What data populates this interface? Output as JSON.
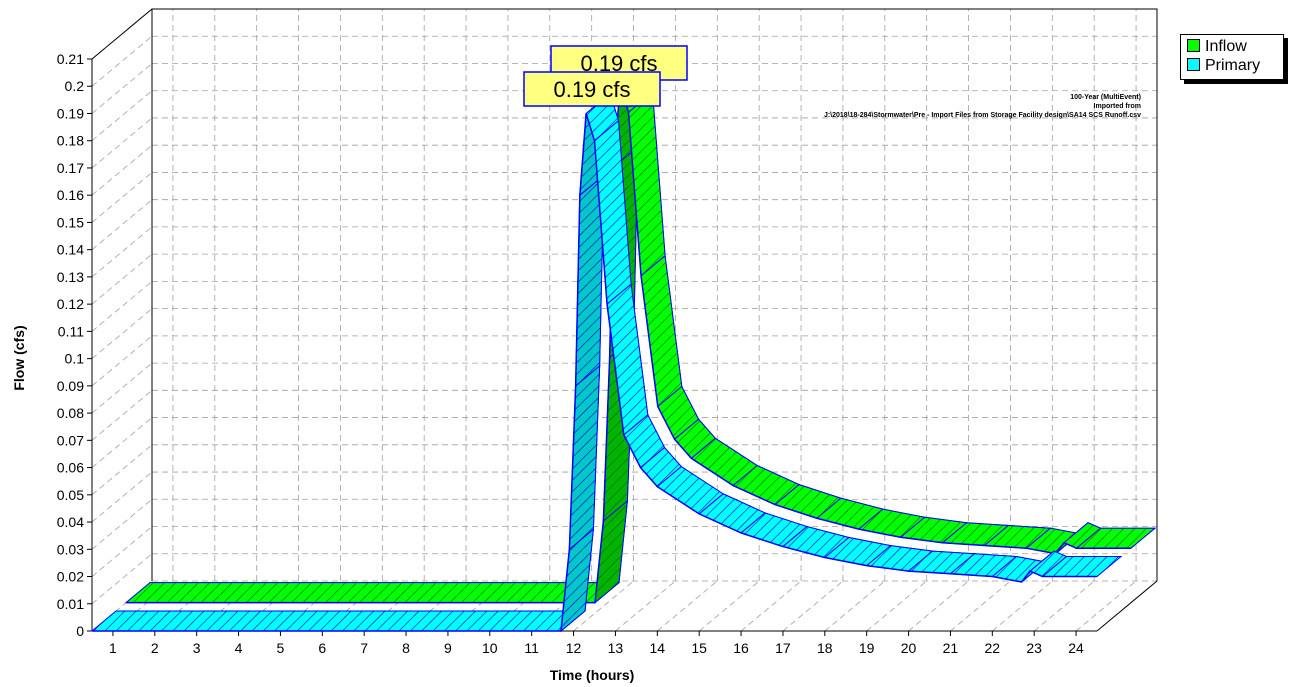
{
  "chart_data": {
    "type": "area",
    "title": "",
    "xlabel": "Time  (hours)",
    "ylabel": "Flow  (cfs)",
    "xlim": [
      0.5,
      24.5
    ],
    "ylim": [
      0,
      0.21
    ],
    "x_ticks": [
      "1",
      "2",
      "3",
      "4",
      "5",
      "6",
      "7",
      "8",
      "9",
      "10",
      "11",
      "12",
      "13",
      "14",
      "15",
      "16",
      "17",
      "18",
      "19",
      "20",
      "21",
      "22",
      "23",
      "24"
    ],
    "y_ticks": [
      "0",
      "0.01",
      "0.02",
      "0.03",
      "0.04",
      "0.05",
      "0.06",
      "0.07",
      "0.08",
      "0.09",
      "0.1",
      "0.11",
      "0.12",
      "0.13",
      "0.14",
      "0.15",
      "0.16",
      "0.17",
      "0.18",
      "0.19",
      "0.2",
      "0.21"
    ],
    "grid": true,
    "legend_position": "top-right, outside plot",
    "series": [
      {
        "name": "Inflow",
        "color": "#00ff00",
        "x": [
          0.5,
          11.7,
          11.9,
          12.05,
          12.15,
          12.3,
          12.5,
          12.8,
          13.2,
          13.6,
          14,
          15,
          16,
          17,
          18,
          19,
          20,
          21,
          22,
          22.7,
          22.9,
          23.2,
          24.5
        ],
        "values": [
          0,
          0,
          0.03,
          0.09,
          0.16,
          0.19,
          0.18,
          0.12,
          0.072,
          0.06,
          0.053,
          0.043,
          0.036,
          0.031,
          0.027,
          0.024,
          0.022,
          0.021,
          0.02,
          0.018,
          0.022,
          0.02,
          0.02
        ],
        "peak_label": "0.19 cfs"
      },
      {
        "name": "Primary",
        "color": "#00ffff",
        "x": [
          0.5,
          11.7,
          11.9,
          12.05,
          12.15,
          12.3,
          12.5,
          12.8,
          13.2,
          13.6,
          14,
          15,
          16,
          17,
          18,
          19,
          20,
          21,
          22,
          22.7,
          22.9,
          23.2,
          24.5
        ],
        "values": [
          0,
          0,
          0.03,
          0.09,
          0.16,
          0.19,
          0.18,
          0.12,
          0.072,
          0.06,
          0.053,
          0.043,
          0.036,
          0.031,
          0.027,
          0.024,
          0.022,
          0.021,
          0.02,
          0.018,
          0.022,
          0.02,
          0.02
        ],
        "peak_label": "0.19 cfs"
      }
    ],
    "annotation_lines": [
      "100-Year (MultiEvent)",
      "Imported from",
      "J:\\2018\\18-284\\Stormwater\\Pre - Import Files from Storage Facility design\\SA14 SCS Runoff.csv"
    ],
    "style": {
      "outline_color": "#0000ff",
      "inflow_dark": "#00b400",
      "primary_dark": "#00c8c8",
      "label_fill": "#ffff80",
      "grid_color": "#a0a0a0"
    }
  }
}
